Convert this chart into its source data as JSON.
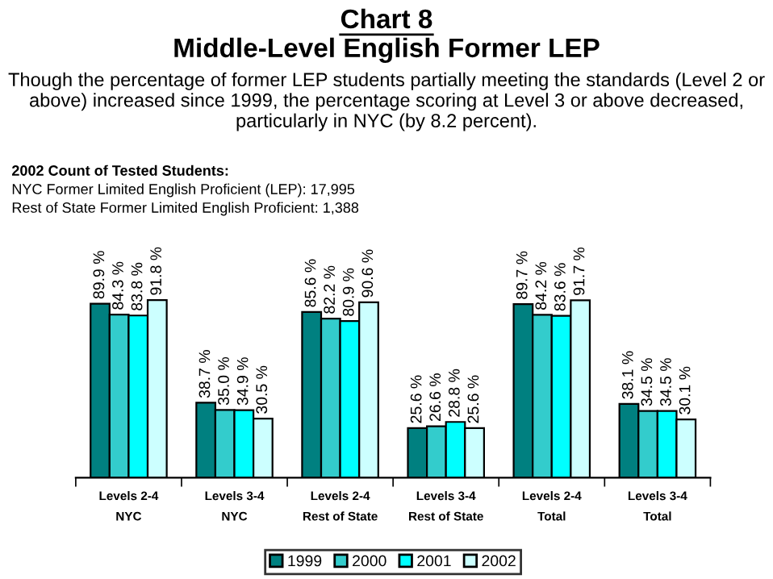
{
  "chart_data": {
    "type": "bar",
    "title": "Chart 8",
    "subtitle": "Middle-Level English Former LEP",
    "annotations": [
      "Though the percentage of former LEP students partially meeting the standards (Level 2 or above) increased since 1999, the percentage scoring at Level 3 or above decreased, particularly in NYC (by 8.2 percent).",
      "2002 Count of Tested Students:",
      "NYC Former Limited English Proficient (LEP): 17,995",
      "Rest of State Former Limited English Proficient: 1,388"
    ],
    "categories": [
      "Levels 2-4\nNYC",
      "Levels 3-4\nNYC",
      "Levels 2-4\nRest of State",
      "Levels 3-4\nRest of State",
      "Levels 2-4\nTotal",
      "Levels 3-4\nTotal"
    ],
    "series": [
      {
        "name": "1999",
        "color": "#008080",
        "values": [
          89.9,
          38.7,
          85.6,
          25.6,
          89.7,
          38.1
        ],
        "value_labels": [
          "89.9 %",
          "38.7 %",
          "85.6 %",
          "25.6 %",
          "89.7 %",
          "38.1 %"
        ]
      },
      {
        "name": "2000",
        "color": "#33cccc",
        "values": [
          84.3,
          35.0,
          82.2,
          26.6,
          84.2,
          34.5
        ],
        "value_labels": [
          "84.3 %",
          "35.0 %",
          "82.2 %",
          "26.6 %",
          "84.2 %",
          "34.5 %"
        ]
      },
      {
        "name": "2001",
        "color": "#00ffff",
        "values": [
          83.8,
          34.9,
          80.9,
          28.8,
          83.6,
          34.5
        ],
        "value_labels": [
          "83.8 %",
          "34.9 %",
          "80.9 %",
          "28.8 %",
          "83.6 %",
          "34.5 %"
        ]
      },
      {
        "name": "2002",
        "color": "#ccffff",
        "values": [
          91.8,
          30.5,
          90.6,
          25.6,
          91.7,
          30.1
        ],
        "value_labels": [
          "91.8 %",
          "30.5 %",
          "90.6 %",
          "25.6 %",
          "91.7 %",
          "30.1 %"
        ]
      }
    ],
    "legend": "bottom",
    "grid": false
  }
}
